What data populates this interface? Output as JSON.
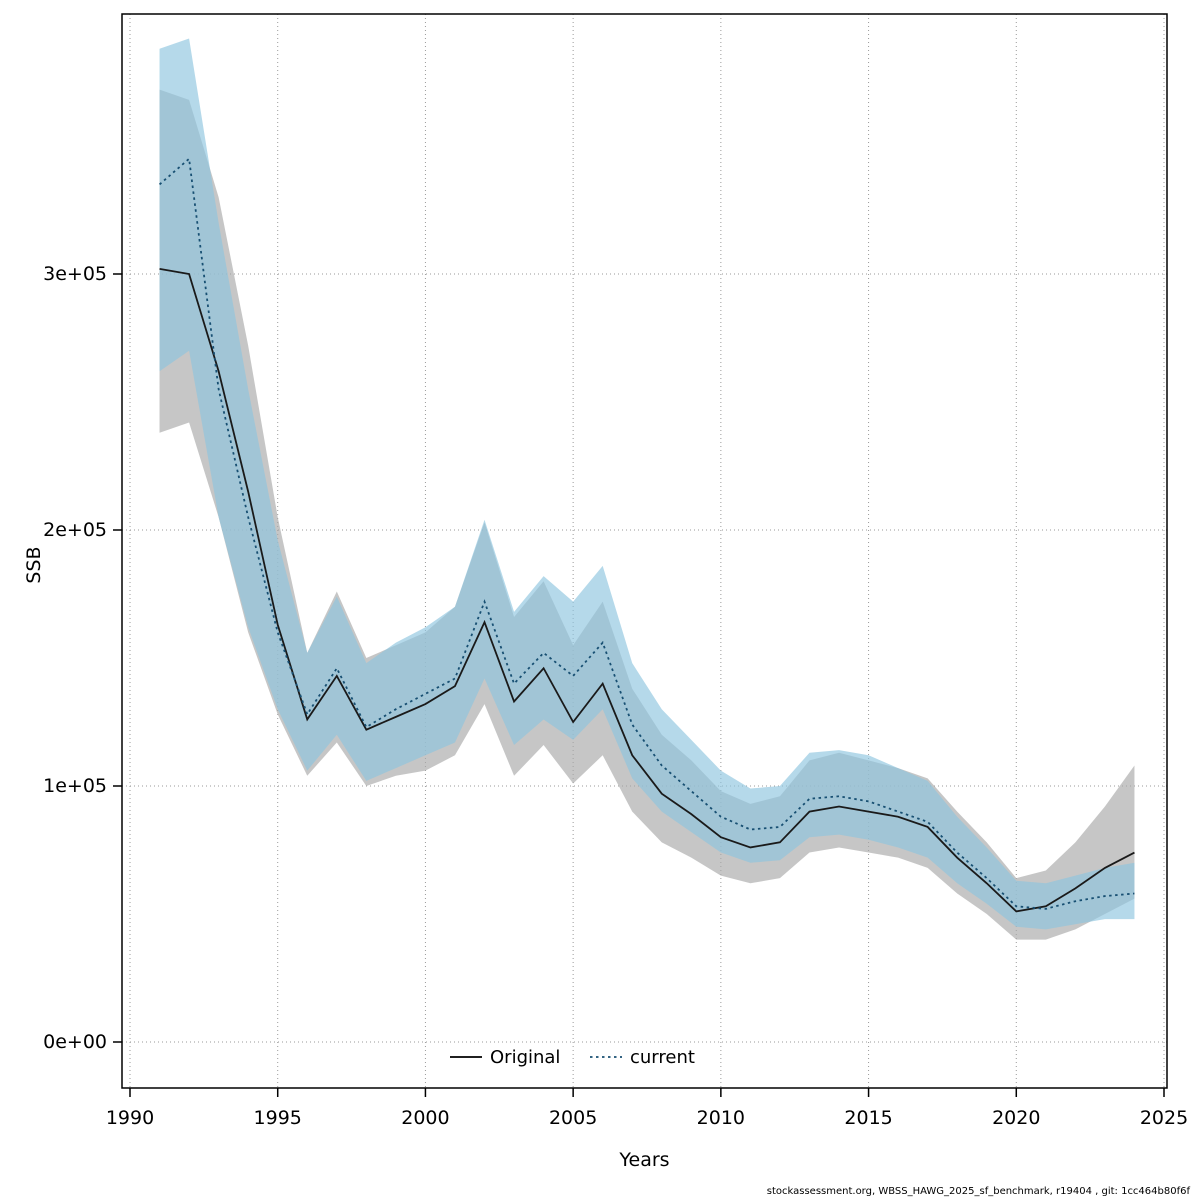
{
  "page": {
    "background": "#ffffff"
  },
  "footer": {
    "text": "stockassessment.org, WBSS_HAWG_2025_sf_benchmark, r19404 , git: 1cc464b80f6f"
  },
  "chart_data": {
    "type": "line",
    "title": "",
    "xlabel": "Years",
    "ylabel": "SSB",
    "grid": true,
    "xlim": [
      1990,
      2025
    ],
    "ylim": [
      0,
      300000
    ],
    "x_ticks": [
      {
        "value": 1990,
        "label": "1990"
      },
      {
        "value": 1995,
        "label": "1995"
      },
      {
        "value": 2000,
        "label": "2000"
      },
      {
        "value": 2005,
        "label": "2005"
      },
      {
        "value": 2010,
        "label": "2010"
      },
      {
        "value": 2015,
        "label": "2015"
      },
      {
        "value": 2020,
        "label": "2020"
      },
      {
        "value": 2025,
        "label": "2025"
      }
    ],
    "y_ticks": [
      {
        "value": 0,
        "label": "0e+00"
      },
      {
        "value": 100000,
        "label": "1e+05"
      },
      {
        "value": 200000,
        "label": "2e+05"
      },
      {
        "value": 300000,
        "label": "3e+05"
      }
    ],
    "x": [
      1991,
      1992,
      1993,
      1994,
      1995,
      1996,
      1997,
      1998,
      1999,
      2000,
      2001,
      2002,
      2003,
      2004,
      2005,
      2006,
      2007,
      2008,
      2009,
      2010,
      2011,
      2012,
      2013,
      2014,
      2015,
      2016,
      2017,
      2018,
      2019,
      2020,
      2021,
      2022,
      2023,
      2024
    ],
    "series": [
      {
        "name": "Original",
        "line_style": "solid",
        "color": "#1a1a1a",
        "band_color": "#a8a8a8",
        "band_opacity": 0.65,
        "values": [
          302000,
          300000,
          262000,
          215000,
          163000,
          126000,
          143000,
          122000,
          127000,
          132000,
          139000,
          164000,
          133000,
          146000,
          125000,
          140000,
          112000,
          97000,
          89000,
          80000,
          76000,
          78000,
          90000,
          92000,
          90000,
          88000,
          84000,
          72000,
          62000,
          51000,
          53000,
          60000,
          68000,
          74000
        ],
        "lower": [
          238000,
          242000,
          205000,
          160000,
          128000,
          104000,
          117000,
          100000,
          104000,
          106000,
          112000,
          132000,
          104000,
          116000,
          101000,
          112000,
          90000,
          78000,
          72000,
          65000,
          62000,
          64000,
          74000,
          76000,
          74000,
          72000,
          68000,
          58000,
          50000,
          40000,
          40000,
          44000,
          50000,
          56000
        ],
        "upper": [
          372000,
          368000,
          330000,
          272000,
          205000,
          152000,
          176000,
          150000,
          155000,
          160000,
          170000,
          203000,
          166000,
          180000,
          155000,
          172000,
          138000,
          120000,
          110000,
          98000,
          93000,
          96000,
          110000,
          113000,
          110000,
          107000,
          103000,
          90000,
          78000,
          64000,
          67000,
          78000,
          92000,
          108000
        ]
      },
      {
        "name": "current",
        "line_style": "dotted",
        "color": "#174f72",
        "band_color": "#8ec4de",
        "band_opacity": 0.65,
        "values": [
          335000,
          345000,
          255000,
          205000,
          160000,
          128000,
          146000,
          123000,
          130000,
          136000,
          142000,
          172000,
          140000,
          152000,
          143000,
          156000,
          124000,
          108000,
          98000,
          88000,
          83000,
          84000,
          95000,
          96000,
          94000,
          90000,
          86000,
          74000,
          64000,
          53000,
          52000,
          55000,
          57000,
          58000
        ],
        "lower": [
          262000,
          270000,
          205000,
          162000,
          130000,
          106000,
          120000,
          102000,
          107000,
          112000,
          117000,
          142000,
          116000,
          126000,
          118000,
          130000,
          103000,
          90000,
          82000,
          74000,
          70000,
          71000,
          80000,
          81000,
          79000,
          76000,
          72000,
          62000,
          54000,
          45000,
          44000,
          46000,
          48000,
          48000
        ],
        "upper": [
          388000,
          392000,
          320000,
          255000,
          196000,
          152000,
          174000,
          148000,
          156000,
          162000,
          170000,
          204000,
          168000,
          182000,
          172000,
          186000,
          148000,
          130000,
          118000,
          106000,
          99000,
          100000,
          113000,
          114000,
          112000,
          107000,
          102000,
          88000,
          76000,
          63000,
          62000,
          65000,
          68000,
          70000
        ]
      }
    ],
    "legend": {
      "position": "bottom-center-inside",
      "entries": [
        {
          "label": "Original",
          "style": "solid",
          "color": "#000000"
        },
        {
          "label": "current",
          "style": "dotted",
          "color": "#174f72"
        }
      ]
    }
  }
}
